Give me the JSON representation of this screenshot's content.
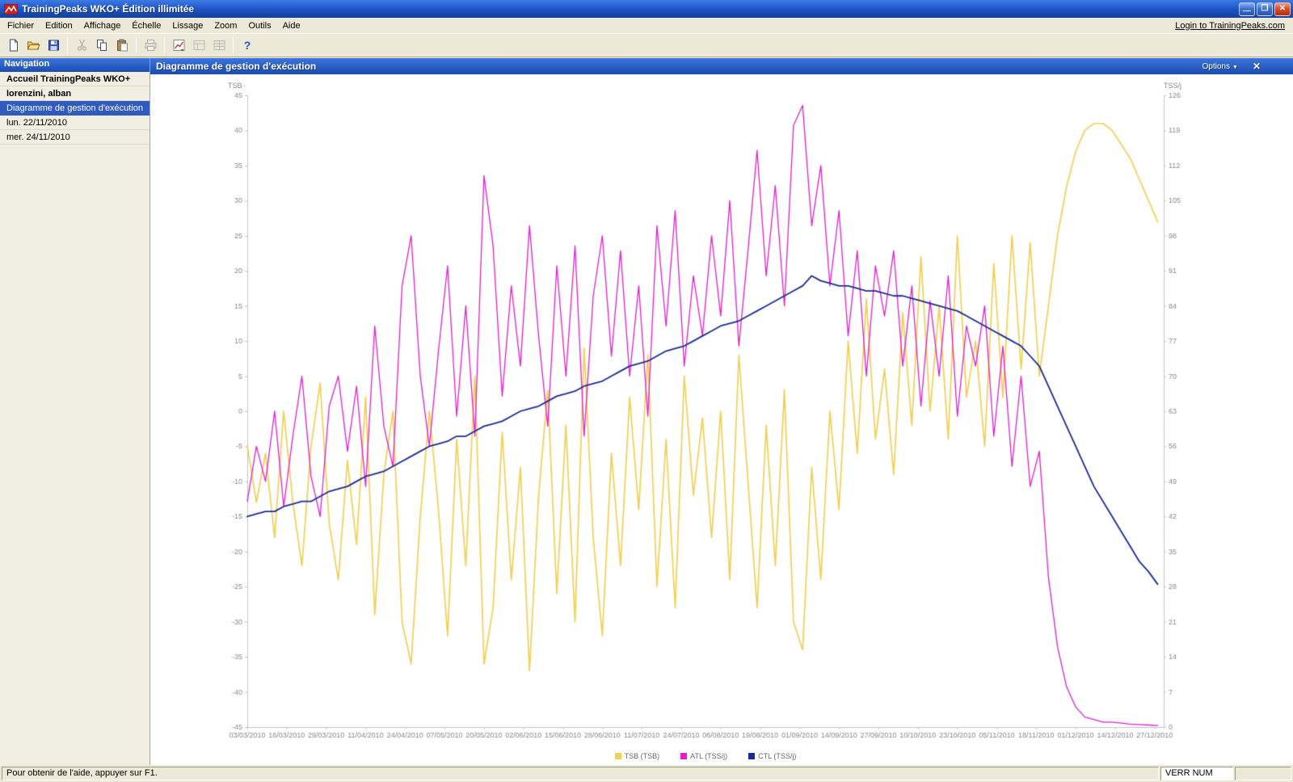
{
  "window": {
    "title": "TrainingPeaks WKO+ Édition illimitée"
  },
  "menu": {
    "items": [
      "Fichier",
      "Edition",
      "Affichage",
      "Échelle",
      "Lissage",
      "Zoom",
      "Outils",
      "Aide"
    ],
    "login_link": "Login to TrainingPeaks.com"
  },
  "toolbar": {
    "buttons": [
      {
        "icon": "new-file-icon",
        "enabled": true
      },
      {
        "icon": "open-folder-icon",
        "enabled": true
      },
      {
        "icon": "save-icon",
        "enabled": true
      },
      {
        "icon": "cut-icon",
        "enabled": false
      },
      {
        "icon": "copy-icon",
        "enabled": true
      },
      {
        "icon": "paste-icon",
        "enabled": true
      },
      {
        "icon": "print-icon",
        "enabled": false
      },
      {
        "icon": "chart-export-icon",
        "enabled": true
      },
      {
        "icon": "layout-icon",
        "enabled": false
      },
      {
        "icon": "grid-icon",
        "enabled": false
      },
      {
        "icon": "help-icon",
        "enabled": true
      }
    ]
  },
  "nav": {
    "header": "Navigation",
    "items": [
      {
        "label": "Accueil TrainingPeaks WKO+",
        "bold": true,
        "selected": false
      },
      {
        "label": "lorenzini, alban",
        "bold": true,
        "selected": false
      },
      {
        "label": "Diagramme de gestion d'exécution",
        "bold": false,
        "selected": true
      },
      {
        "label": "lun. 22/11/2010",
        "bold": false,
        "selected": false
      },
      {
        "label": "mer. 24/11/2010",
        "bold": false,
        "selected": false
      }
    ]
  },
  "panel": {
    "title": "Diagramme de gestion d'exécution",
    "options_label": "Options",
    "close_label": "✕"
  },
  "statusbar": {
    "help_text": "Pour obtenir de l'aide, appuyer sur F1.",
    "num_lock": "VERR NUM"
  },
  "chart_data": {
    "type": "line",
    "title": "Diagramme de gestion d'exécution",
    "start_date": "03/03/2010",
    "sample_interval_days": 3,
    "tick_interval_days": 13,
    "x_range": [
      0,
      302
    ],
    "x_tick_labels": [
      "03/03/2010",
      "16/03/2010",
      "29/03/2010",
      "11/04/2010",
      "24/04/2010",
      "07/05/2010",
      "20/05/2010",
      "02/06/2010",
      "15/06/2010",
      "28/06/2010",
      "11/07/2010",
      "24/07/2010",
      "06/08/2010",
      "19/08/2010",
      "01/09/2010",
      "14/09/2010",
      "27/09/2010",
      "10/10/2010",
      "23/10/2010",
      "05/11/2010",
      "18/11/2010",
      "01/12/2010",
      "14/12/2010",
      "27/12/2010"
    ],
    "left_axis": {
      "label": "TSB",
      "min": -45,
      "max": 45,
      "step": 5
    },
    "right_axis": {
      "label": "TSS/j",
      "min": 0,
      "max": 126,
      "step": 7
    },
    "grid": false,
    "legend_position": "bottom",
    "series": [
      {
        "name": "TSB (TSB)",
        "axis": "left",
        "color": "#F2CF55",
        "values": [
          -5,
          -13,
          -6,
          -18,
          0,
          -13,
          -22,
          -5,
          4,
          -16,
          -24,
          -7,
          -19,
          2,
          -29,
          -9,
          0,
          -30,
          -36,
          -15,
          0,
          -14,
          -32,
          -4,
          -22,
          5,
          -36,
          -28,
          -3,
          -24,
          -8,
          -37,
          -12,
          3,
          -26,
          -2,
          -30,
          9,
          -18,
          -32,
          -6,
          -22,
          2,
          -14,
          8,
          -25,
          -4,
          -28,
          5,
          -12,
          -1,
          -18,
          0,
          -24,
          8,
          -10,
          -28,
          -2,
          -22,
          3,
          -30,
          -34,
          -8,
          -24,
          0,
          -14,
          10,
          -6,
          16,
          -4,
          6,
          -9,
          14,
          -2,
          22,
          0,
          15,
          -4,
          25,
          2,
          10,
          -5,
          21,
          2,
          25,
          6,
          24,
          5,
          15,
          25,
          32,
          37,
          40,
          41,
          41,
          40,
          38,
          36,
          33,
          30,
          27
        ]
      },
      {
        "name": "ATL (TSS/j)",
        "axis": "right",
        "color": "#E020CE",
        "values": [
          45,
          56,
          49,
          63,
          44,
          58,
          70,
          50,
          42,
          64,
          70,
          55,
          68,
          48,
          80,
          60,
          52,
          88,
          98,
          70,
          56,
          75,
          92,
          62,
          84,
          58,
          110,
          96,
          66,
          88,
          72,
          100,
          78,
          60,
          92,
          70,
          96,
          58,
          86,
          98,
          74,
          95,
          70,
          88,
          62,
          100,
          80,
          103,
          72,
          90,
          78,
          98,
          82,
          105,
          76,
          95,
          115,
          90,
          108,
          84,
          120,
          124,
          100,
          112,
          88,
          103,
          78,
          95,
          70,
          92,
          82,
          95,
          72,
          88,
          64,
          85,
          70,
          90,
          62,
          80,
          72,
          84,
          58,
          76,
          52,
          70,
          48,
          55,
          30,
          16,
          8,
          4,
          2,
          1.5,
          1,
          1,
          0.8,
          0.6,
          0.5,
          0.4,
          0.3
        ]
      },
      {
        "name": "CTL (TSS/j)",
        "axis": "right",
        "color": "#1B2C96",
        "values": [
          42,
          42.5,
          43,
          43,
          44,
          44.5,
          45,
          45,
          46,
          47,
          47.5,
          48,
          49,
          50,
          50.5,
          51,
          52,
          53,
          54,
          55,
          56,
          56.5,
          57,
          58,
          58,
          59,
          60,
          60.5,
          61,
          62,
          63,
          63.5,
          64,
          65,
          66,
          66.5,
          67,
          68,
          68.5,
          69,
          70,
          71,
          72,
          72.5,
          73,
          74,
          75,
          75.5,
          76,
          77,
          78,
          79,
          80,
          80.5,
          81,
          82,
          83,
          84,
          85,
          86,
          87,
          88,
          90,
          89,
          88.5,
          88,
          88,
          87.5,
          87,
          87,
          86.5,
          86,
          86,
          85.5,
          85,
          84.5,
          84,
          83.5,
          83,
          82,
          81,
          80,
          79,
          78,
          77,
          76,
          74,
          72,
          68,
          64,
          60,
          56,
          52,
          48,
          45,
          42,
          39,
          36,
          33,
          31,
          28.5
        ]
      }
    ]
  }
}
